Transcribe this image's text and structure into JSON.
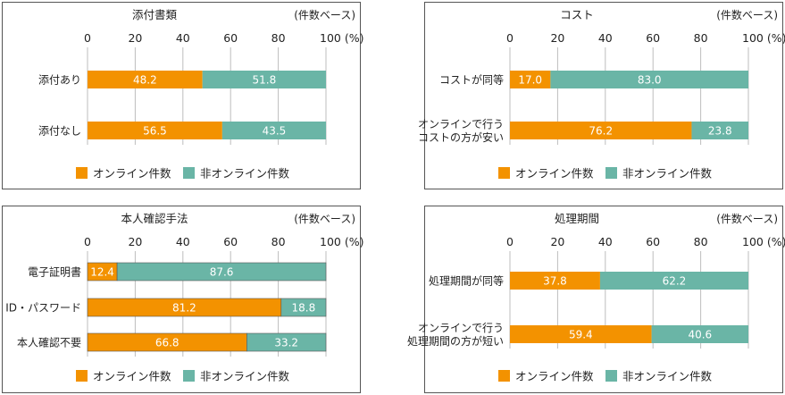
{
  "colors": {
    "online": "#F39200",
    "offline": "#6AB5A6",
    "grid": "#BDBDBD",
    "text": "#222222"
  },
  "chart_data": [
    {
      "type": "bar",
      "stacked": true,
      "orientation": "horizontal",
      "title": "添付書類",
      "unit_note": "(件数ベース)",
      "xlim": [
        0,
        100
      ],
      "ticks": [
        "0",
        "20",
        "40",
        "60",
        "80",
        "100 (%)"
      ],
      "categories": [
        [
          "添付あり"
        ],
        [
          "添付なし"
        ]
      ],
      "series": [
        {
          "name": "オンライン件数",
          "values": [
            48.2,
            56.5
          ],
          "labels": [
            "48.2",
            "56.5"
          ]
        },
        {
          "name": "非オンライン件数",
          "values": [
            51.8,
            43.5
          ],
          "labels": [
            "51.8",
            "43.5"
          ]
        }
      ],
      "legend": "bottom"
    },
    {
      "type": "bar",
      "stacked": true,
      "orientation": "horizontal",
      "title": "コスト",
      "unit_note": "(件数ベース)",
      "xlim": [
        0,
        100
      ],
      "ticks": [
        "0",
        "20",
        "40",
        "60",
        "80",
        "100 (%)"
      ],
      "categories": [
        [
          "コストが同等"
        ],
        [
          "オンラインで行う",
          "コストの方が安い"
        ]
      ],
      "series": [
        {
          "name": "オンライン件数",
          "values": [
            17.0,
            76.2
          ],
          "labels": [
            "17.0",
            "76.2"
          ]
        },
        {
          "name": "非オンライン件数",
          "values": [
            83.0,
            23.8
          ],
          "labels": [
            "83.0",
            "23.8"
          ]
        }
      ],
      "legend": "bottom"
    },
    {
      "type": "bar",
      "stacked": true,
      "orientation": "horizontal",
      "title": "本人確認手法",
      "unit_note": "(件数ベース)",
      "xlim": [
        0,
        100
      ],
      "ticks": [
        "0",
        "20",
        "40",
        "60",
        "80",
        "100 (%)"
      ],
      "categories": [
        [
          "電子証明書"
        ],
        [
          "ID・パスワード"
        ],
        [
          "本人確認不要"
        ]
      ],
      "series": [
        {
          "name": "オンライン件数",
          "values": [
            12.4,
            81.2,
            66.8
          ],
          "labels": [
            "12.4",
            "81.2",
            "66.8"
          ]
        },
        {
          "name": "非オンライン件数",
          "values": [
            87.6,
            18.8,
            33.2
          ],
          "labels": [
            "87.6",
            "18.8",
            "33.2"
          ]
        }
      ],
      "legend": "bottom"
    },
    {
      "type": "bar",
      "stacked": true,
      "orientation": "horizontal",
      "title": "処理期間",
      "unit_note": "(件数ベース)",
      "xlim": [
        0,
        100
      ],
      "ticks": [
        "0",
        "20",
        "40",
        "60",
        "80",
        "100 (%)"
      ],
      "categories": [
        [
          "処理期間が同等"
        ],
        [
          "オンラインで行う",
          "処理期間の方が短い"
        ]
      ],
      "series": [
        {
          "name": "オンライン件数",
          "values": [
            37.8,
            59.4
          ],
          "labels": [
            "37.8",
            "59.4"
          ]
        },
        {
          "name": "非オンライン件数",
          "values": [
            62.2,
            40.6
          ],
          "labels": [
            "62.2",
            "40.6"
          ]
        }
      ],
      "legend": "bottom"
    }
  ]
}
